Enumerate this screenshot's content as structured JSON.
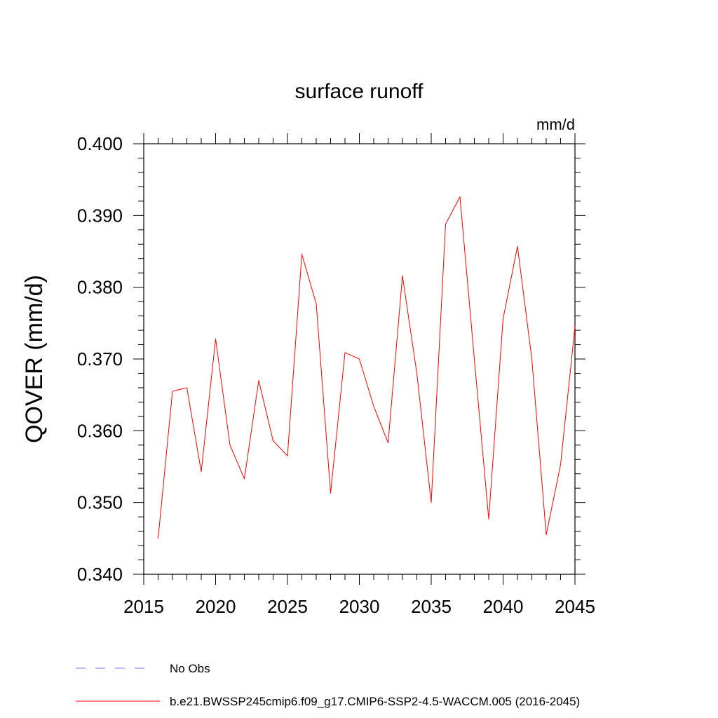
{
  "chart_data": {
    "type": "line",
    "title": "surface runoff",
    "units": "mm/d",
    "xlabel": "",
    "ylabel": "QOVER  (mm/d)",
    "xlim": [
      2015,
      2045
    ],
    "ylim": [
      0.34,
      0.4
    ],
    "x_ticks": [
      2015,
      2020,
      2025,
      2030,
      2035,
      2040,
      2045
    ],
    "x_tick_labels": [
      "2015",
      "2020",
      "2025",
      "2030",
      "2035",
      "2040",
      "2045"
    ],
    "y_ticks": [
      0.34,
      0.35,
      0.36,
      0.37,
      0.38,
      0.39,
      0.4
    ],
    "y_tick_labels": [
      "0.340",
      "0.350",
      "0.360",
      "0.370",
      "0.380",
      "0.390",
      "0.400"
    ],
    "series": [
      {
        "name": "b.e21.BWSSP245cmip6.f09_g17.CMIP6-SSP2-4.5-WACCM.005 (2016-2045)",
        "color": "#ff0000",
        "x": [
          2016,
          2017,
          2018,
          2019,
          2020,
          2021,
          2022,
          2023,
          2024,
          2025,
          2026,
          2027,
          2028,
          2029,
          2030,
          2031,
          2032,
          2033,
          2034,
          2035,
          2036,
          2037,
          2038,
          2039,
          2040,
          2041,
          2042,
          2043,
          2044,
          2045
        ],
        "values": [
          0.345,
          0.3655,
          0.366,
          0.3543,
          0.3728,
          0.358,
          0.3533,
          0.367,
          0.3586,
          0.3565,
          0.3846,
          0.3777,
          0.3513,
          0.3709,
          0.37,
          0.3634,
          0.3583,
          0.3816,
          0.368,
          0.35,
          0.3888,
          0.3926,
          0.37,
          0.3477,
          0.3756,
          0.3857,
          0.37,
          0.3455,
          0.3553,
          0.3745
        ]
      }
    ],
    "legend": [
      {
        "label": "No Obs",
        "color": "#7b68ee",
        "style": "dashed"
      },
      {
        "label": "b.e21.BWSSP245cmip6.f09_g17.CMIP6-SSP2-4.5-WACCM.005 (2016-2045)",
        "color": "#ff0000",
        "style": "solid"
      }
    ]
  }
}
